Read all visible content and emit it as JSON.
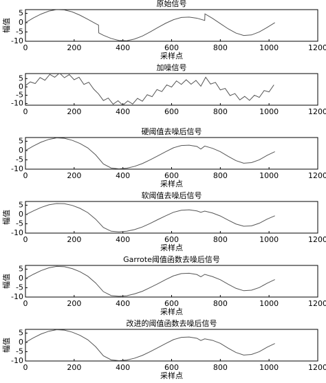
{
  "chart_data": [
    {
      "type": "line",
      "title": "原始信号",
      "xlabel": "采样点",
      "ylabel": "幅值",
      "xlim": [
        0,
        1200
      ],
      "xticks": [
        0,
        200,
        400,
        600,
        800,
        1000,
        1200
      ],
      "ylim": [
        -10,
        7
      ],
      "yticks": [
        -10,
        -5,
        0,
        5
      ],
      "series": [
        {
          "color": "#555555",
          "x": [
            0,
            32,
            64,
            96,
            128,
            160,
            192,
            224,
            256,
            288,
            300,
            301,
            320,
            352,
            384,
            416,
            448,
            480,
            512,
            544,
            576,
            608,
            640,
            672,
            704,
            736,
            737,
            768,
            800,
            832,
            864,
            896,
            928,
            960,
            992,
            1024
          ],
          "values": [
            0,
            2.5,
            4.6,
            6.2,
            7,
            6.8,
            5.8,
            4,
            1.8,
            -0.5,
            -1.3,
            -5.5,
            -6.8,
            -8.5,
            -9.6,
            -9.7,
            -8.8,
            -7.2,
            -5,
            -2.6,
            -0.3,
            1.6,
            2.8,
            3,
            2.4,
            1.2,
            4.7,
            2.3,
            -0.5,
            -3.3,
            -5.6,
            -6.9,
            -6.6,
            -5,
            -2.6,
            0
          ]
        }
      ]
    },
    {
      "type": "line",
      "title": "加噪信号",
      "xlim": [
        0,
        1200
      ],
      "xticks": [
        0,
        200,
        400,
        600,
        800,
        1000,
        1200
      ],
      "ylim": [
        -11,
        8
      ],
      "yticks": [
        -10,
        -5,
        0,
        5
      ],
      "series": [
        {
          "color": "#555555",
          "x": [
            0,
            20,
            40,
            60,
            80,
            100,
            120,
            140,
            160,
            180,
            200,
            220,
            240,
            260,
            280,
            300,
            320,
            340,
            360,
            380,
            400,
            420,
            440,
            460,
            480,
            500,
            520,
            540,
            560,
            580,
            600,
            620,
            640,
            660,
            680,
            700,
            720,
            740,
            760,
            780,
            800,
            820,
            840,
            860,
            880,
            900,
            920,
            940,
            960,
            980,
            1000,
            1020
          ],
          "values": [
            0.8,
            3.0,
            2.0,
            5.6,
            4.0,
            7.5,
            5.8,
            8.3,
            5.5,
            7.4,
            4.3,
            5.8,
            1.5,
            2.8,
            -1.3,
            -4.2,
            -8.2,
            -6.7,
            -10.4,
            -8.3,
            -11,
            -8.4,
            -10.3,
            -6.9,
            -8.6,
            -4.7,
            -5.9,
            -1.6,
            -2.8,
            1.2,
            -0.1,
            3.6,
            1.5,
            4.3,
            1.6,
            3.9,
            0.4,
            5.8,
            1.7,
            2.7,
            -1.8,
            -0.9,
            -5.2,
            -4.0,
            -7.8,
            -5.7,
            -8.1,
            -5,
            -6.3,
            -2.2,
            -3.0,
            1.2
          ]
        }
      ]
    },
    {
      "type": "line",
      "title": "硬阈值去噪后信号",
      "xlabel": "采样点",
      "xlim": [
        0,
        1200
      ],
      "xticks": [
        0,
        200,
        400,
        600,
        800,
        1000,
        1200
      ],
      "ylim": [
        -10,
        7
      ],
      "yticks": [
        -10,
        -5,
        0,
        5
      ],
      "series": [
        {
          "color": "#555555",
          "x": [
            0,
            32,
            64,
            96,
            128,
            160,
            192,
            224,
            256,
            288,
            320,
            352,
            384,
            416,
            448,
            480,
            512,
            544,
            576,
            608,
            640,
            672,
            704,
            720,
            736,
            768,
            800,
            832,
            864,
            896,
            928,
            960,
            992,
            1024
          ],
          "values": [
            0,
            2.4,
            4.5,
            6.0,
            6.8,
            6.6,
            5.5,
            3.8,
            1.4,
            -2.3,
            -7.2,
            -9.4,
            -9.8,
            -9.5,
            -8.5,
            -7,
            -5,
            -2.8,
            -0.6,
            1.5,
            2.7,
            2.9,
            2.2,
            0.8,
            2.4,
            1.2,
            -0.6,
            -3.1,
            -5.4,
            -6.8,
            -6.5,
            -5,
            -2.6,
            -0.6
          ]
        }
      ]
    },
    {
      "type": "line",
      "title": "软阈值去噪后信号",
      "xlabel": "采样点",
      "ylabel": "幅值",
      "xlim": [
        0,
        1200
      ],
      "xticks": [
        0,
        200,
        400,
        600,
        800,
        1000,
        1200
      ],
      "ylim": [
        -10,
        7
      ],
      "yticks": [
        -10,
        -5,
        0,
        5
      ],
      "series": [
        {
          "color": "#555555",
          "x": [
            0,
            32,
            64,
            96,
            128,
            160,
            192,
            224,
            256,
            288,
            320,
            352,
            384,
            416,
            448,
            480,
            512,
            544,
            576,
            608,
            640,
            672,
            704,
            720,
            736,
            768,
            800,
            832,
            864,
            896,
            928,
            960,
            992,
            1024
          ],
          "values": [
            -0.2,
            1.9,
            3.8,
            5.2,
            5.9,
            5.8,
            4.9,
            3.3,
            1.0,
            -2.5,
            -7.0,
            -9.0,
            -9.3,
            -9.0,
            -8.1,
            -6.7,
            -4.8,
            -2.7,
            -0.7,
            1.2,
            2.3,
            2.5,
            1.9,
            1.2,
            1.8,
            0.8,
            -0.8,
            -3.0,
            -5.1,
            -6.3,
            -6.1,
            -4.7,
            -2.5,
            -0.7
          ]
        }
      ]
    },
    {
      "type": "line",
      "title": "Garrote阈值函数去噪后信号",
      "xlabel": "采样点",
      "ylabel": "幅值",
      "xlim": [
        0,
        1200
      ],
      "xticks": [
        0,
        200,
        400,
        600,
        800,
        1000,
        1200
      ],
      "ylim": [
        -10,
        7
      ],
      "yticks": [
        -10,
        -5,
        0,
        5
      ],
      "series": [
        {
          "color": "#555555",
          "x": [
            0,
            32,
            64,
            96,
            128,
            160,
            192,
            224,
            256,
            288,
            320,
            352,
            384,
            416,
            448,
            480,
            512,
            544,
            576,
            608,
            640,
            672,
            704,
            720,
            736,
            768,
            800,
            832,
            864,
            896,
            928,
            960,
            992,
            1024
          ],
          "values": [
            -0.1,
            2.2,
            4.2,
            5.7,
            6.5,
            6.3,
            5.3,
            3.6,
            1.2,
            -2.4,
            -7.1,
            -9.2,
            -9.6,
            -9.3,
            -8.3,
            -6.9,
            -4.9,
            -2.8,
            -0.6,
            1.4,
            2.6,
            2.8,
            2.1,
            0.9,
            2.2,
            1.0,
            -0.7,
            -3.1,
            -5.3,
            -6.6,
            -6.3,
            -4.9,
            -2.6,
            -0.6
          ]
        }
      ]
    },
    {
      "type": "line",
      "title": "改进的阈值函数去噪后信号",
      "xlabel": "采样点",
      "ylabel": "幅值",
      "xlim": [
        0,
        1200
      ],
      "xticks": [
        0,
        200,
        400,
        600,
        800,
        1000,
        1200
      ],
      "ylim": [
        -10,
        7
      ],
      "yticks": [
        -10,
        -5,
        0,
        5
      ],
      "series": [
        {
          "color": "#555555",
          "x": [
            0,
            32,
            64,
            96,
            128,
            160,
            192,
            224,
            256,
            288,
            320,
            352,
            384,
            416,
            448,
            480,
            512,
            544,
            576,
            608,
            640,
            672,
            704,
            720,
            736,
            768,
            800,
            832,
            864,
            896,
            928,
            960,
            992,
            1024
          ],
          "values": [
            0,
            2.4,
            4.5,
            6.0,
            6.8,
            6.6,
            5.5,
            3.8,
            1.4,
            -2.3,
            -7.2,
            -9.4,
            -9.8,
            -9.5,
            -8.5,
            -7,
            -5,
            -2.8,
            -0.6,
            1.5,
            2.7,
            2.9,
            2.2,
            1.0,
            1.9,
            1.1,
            -0.5,
            -3.1,
            -5.4,
            -6.8,
            -6.5,
            -5,
            -2.6,
            -0.6
          ]
        }
      ]
    }
  ]
}
